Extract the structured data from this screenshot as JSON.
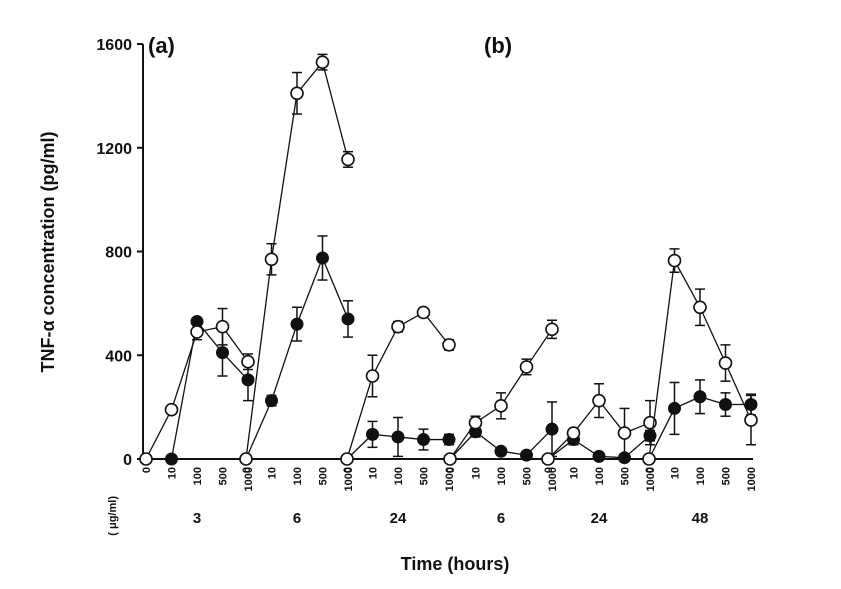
{
  "chart_data": {
    "type": "line",
    "title": "",
    "ylabel": "TNF-α concentration (pg/ml)",
    "xlabel": "Time (hours)",
    "x_unit_label": "( μg/ml)",
    "ylim": [
      0,
      1600
    ],
    "yticks": [
      "0",
      "400",
      "800",
      "1200",
      "1600"
    ],
    "dose_labels": [
      "0",
      "10",
      "100",
      "500",
      "1000"
    ],
    "panels": [
      {
        "label": "(a)",
        "groups": [
          {
            "time": "3",
            "open": [
              0,
              190,
              490,
              510,
              375
            ],
            "open_err": [
              0,
              0,
              30,
              70,
              30
            ],
            "filled": [
              0,
              0,
              530,
              410,
              305
            ],
            "filled_err": [
              0,
              0,
              0,
              90,
              80
            ]
          },
          {
            "time": "6",
            "open": [
              0,
              770,
              1410,
              1530,
              1155
            ],
            "open_err": [
              0,
              60,
              80,
              30,
              30
            ],
            "filled": [
              0,
              225,
              520,
              775,
              540
            ],
            "filled_err": [
              0,
              20,
              65,
              85,
              70
            ]
          },
          {
            "time": "24",
            "open": [
              0,
              320,
              510,
              565,
              440
            ],
            "open_err": [
              0,
              80,
              20,
              15,
              20
            ],
            "filled": [
              0,
              95,
              85,
              75,
              75
            ],
            "filled_err": [
              0,
              50,
              75,
              40,
              20
            ]
          }
        ]
      },
      {
        "label": "(b)",
        "groups": [
          {
            "time": "6",
            "open": [
              0,
              140,
              205,
              355,
              500
            ],
            "open_err": [
              0,
              25,
              50,
              30,
              35
            ],
            "filled": [
              0,
              105,
              30,
              15,
              115
            ],
            "filled_err": [
              0,
              20,
              10,
              10,
              105
            ]
          },
          {
            "time": "24",
            "open": [
              0,
              100,
              225,
              100,
              140
            ],
            "open_err": [
              0,
              15,
              65,
              95,
              85
            ],
            "filled": [
              0,
              75,
              10,
              5,
              90
            ],
            "filled_err": [
              0,
              20,
              10,
              10,
              20
            ]
          },
          {
            "time": "48",
            "open": [
              0,
              765,
              585,
              370,
              150
            ],
            "open_err": [
              0,
              45,
              70,
              70,
              95
            ],
            "filled": [
              0,
              195,
              240,
              210,
              210
            ],
            "filled_err": [
              0,
              100,
              65,
              45,
              40
            ]
          }
        ]
      }
    ]
  }
}
